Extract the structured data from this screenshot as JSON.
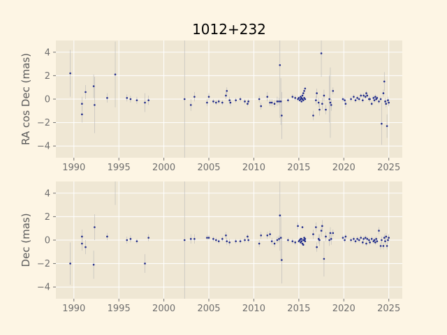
{
  "title": "1012+232",
  "colors": {
    "figure_bg": "#fdf5e4",
    "axes_bg": "#efe7d4",
    "grid": "#ffffff",
    "point": "#1f2a8a",
    "errorbar": "#b8b8b8"
  },
  "chart_data": [
    {
      "type": "scatter",
      "title": "1012+232",
      "xlabel": "",
      "ylabel": "RA cos Dec (mas)",
      "xlim": [
        1988,
        2026.5
      ],
      "ylim": [
        -5,
        5
      ],
      "xticks": [
        1990,
        1995,
        2000,
        2005,
        2010,
        2015,
        2020,
        2025
      ],
      "yticks": [
        -4,
        -2,
        0,
        2,
        4
      ],
      "grid": true,
      "points": [
        {
          "x": 1989.6,
          "y": 2.2,
          "err": 2.0
        },
        {
          "x": 1990.9,
          "y": -0.4,
          "err": 0.6
        },
        {
          "x": 1990.9,
          "y": -1.3,
          "err": 0.7
        },
        {
          "x": 1991.3,
          "y": 0.6,
          "err": 0.6
        },
        {
          "x": 1992.2,
          "y": 1.1,
          "err": 1.0
        },
        {
          "x": 1992.3,
          "y": -0.5,
          "err": 2.4
        },
        {
          "x": 1993.7,
          "y": 0.1,
          "err": 0.4
        },
        {
          "x": 1994.6,
          "y": 2.1,
          "err": 2.8
        },
        {
          "x": 1995.9,
          "y": 0.1,
          "err": 0.3
        },
        {
          "x": 1996.3,
          "y": 0.0,
          "err": 0.3
        },
        {
          "x": 1997.0,
          "y": -0.1,
          "err": 0.3
        },
        {
          "x": 1997.9,
          "y": -0.3,
          "err": 0.8
        },
        {
          "x": 1998.3,
          "y": -0.1,
          "err": 0.4
        },
        {
          "x": 2002.3,
          "y": 0.0,
          "err": 6.0
        },
        {
          "x": 2003.0,
          "y": -0.5,
          "err": 0.5
        },
        {
          "x": 2003.4,
          "y": 0.2,
          "err": 0.4
        },
        {
          "x": 2004.8,
          "y": -0.3,
          "err": 0.3
        },
        {
          "x": 2005.0,
          "y": 0.2,
          "err": 0.3
        },
        {
          "x": 2005.5,
          "y": -0.2,
          "err": 0.2
        },
        {
          "x": 2005.8,
          "y": -0.3,
          "err": 0.2
        },
        {
          "x": 2006.1,
          "y": -0.2,
          "err": 0.2
        },
        {
          "x": 2006.5,
          "y": -0.3,
          "err": 0.2
        },
        {
          "x": 2006.9,
          "y": 0.3,
          "err": 0.3
        },
        {
          "x": 2007.0,
          "y": 0.7,
          "err": 0.3
        },
        {
          "x": 2007.3,
          "y": -0.1,
          "err": 0.3
        },
        {
          "x": 2007.4,
          "y": -0.3,
          "err": 0.3
        },
        {
          "x": 2008.0,
          "y": -0.1,
          "err": 0.2
        },
        {
          "x": 2008.5,
          "y": 0.0,
          "err": 0.2
        },
        {
          "x": 2009.0,
          "y": -0.2,
          "err": 0.2
        },
        {
          "x": 2009.3,
          "y": -0.4,
          "err": 0.2
        },
        {
          "x": 2009.4,
          "y": -0.2,
          "err": 0.2
        },
        {
          "x": 2010.6,
          "y": 0.0,
          "err": 0.3
        },
        {
          "x": 2010.8,
          "y": -0.6,
          "err": 0.3
        },
        {
          "x": 2011.5,
          "y": 0.2,
          "err": 0.4
        },
        {
          "x": 2011.8,
          "y": -0.3,
          "err": 0.3
        },
        {
          "x": 2012.0,
          "y": -0.3,
          "err": 0.3
        },
        {
          "x": 2012.3,
          "y": -0.4,
          "err": 0.3
        },
        {
          "x": 2012.6,
          "y": -0.2,
          "err": 0.4
        },
        {
          "x": 2012.8,
          "y": -0.2,
          "err": 0.3
        },
        {
          "x": 2012.9,
          "y": 2.9,
          "err": 4.5
        },
        {
          "x": 2013.0,
          "y": -0.2,
          "err": 2.0
        },
        {
          "x": 2013.1,
          "y": -1.4,
          "err": 2.0
        },
        {
          "x": 2013.8,
          "y": -0.1,
          "err": 0.2
        },
        {
          "x": 2014.3,
          "y": 0.2,
          "err": 0.2
        },
        {
          "x": 2014.6,
          "y": 0.1,
          "err": 0.2
        },
        {
          "x": 2014.9,
          "y": 0.0,
          "err": 0.2
        },
        {
          "x": 2015.0,
          "y": 0.1,
          "err": 0.1
        },
        {
          "x": 2015.1,
          "y": -0.1,
          "err": 0.1
        },
        {
          "x": 2015.2,
          "y": 0.0,
          "err": 0.1
        },
        {
          "x": 2015.2,
          "y": 0.2,
          "err": 0.1
        },
        {
          "x": 2015.3,
          "y": -0.2,
          "err": 0.1
        },
        {
          "x": 2015.3,
          "y": 0.1,
          "err": 0.1
        },
        {
          "x": 2015.4,
          "y": 0.0,
          "err": 0.1
        },
        {
          "x": 2015.4,
          "y": 0.3,
          "err": 0.1
        },
        {
          "x": 2015.5,
          "y": -0.1,
          "err": 0.1
        },
        {
          "x": 2015.5,
          "y": 0.5,
          "err": 0.1
        },
        {
          "x": 2015.6,
          "y": 0.7,
          "err": 0.1
        },
        {
          "x": 2015.6,
          "y": 0.1,
          "err": 0.1
        },
        {
          "x": 2015.7,
          "y": 0.0,
          "err": 0.1
        },
        {
          "x": 2015.7,
          "y": 0.9,
          "err": 0.1
        },
        {
          "x": 2016.6,
          "y": -1.4,
          "err": 0.4
        },
        {
          "x": 2016.9,
          "y": -0.1,
          "err": 0.4
        },
        {
          "x": 2017.0,
          "y": 0.5,
          "err": 0.4
        },
        {
          "x": 2017.2,
          "y": -0.3,
          "err": 0.4
        },
        {
          "x": 2017.3,
          "y": -0.9,
          "err": 0.5
        },
        {
          "x": 2017.5,
          "y": 3.9,
          "err": 2.0
        },
        {
          "x": 2017.6,
          "y": -0.4,
          "err": 0.5
        },
        {
          "x": 2017.8,
          "y": 0.3,
          "err": 0.5
        },
        {
          "x": 2018.0,
          "y": -0.9,
          "err": 0.4
        },
        {
          "x": 2018.4,
          "y": 0.0,
          "err": 2.0
        },
        {
          "x": 2018.5,
          "y": -0.3,
          "err": 3.0
        },
        {
          "x": 2018.6,
          "y": -0.5,
          "err": 0.5
        },
        {
          "x": 2018.8,
          "y": 0.7,
          "err": 0.3
        },
        {
          "x": 2019.9,
          "y": 0.0,
          "err": 0.2
        },
        {
          "x": 2020.1,
          "y": -0.1,
          "err": 0.2
        },
        {
          "x": 2020.2,
          "y": -0.4,
          "err": 0.3
        },
        {
          "x": 2020.8,
          "y": 0.0,
          "err": 0.2
        },
        {
          "x": 2021.1,
          "y": 0.2,
          "err": 0.2
        },
        {
          "x": 2021.3,
          "y": -0.1,
          "err": 0.2
        },
        {
          "x": 2021.5,
          "y": 0.1,
          "err": 0.2
        },
        {
          "x": 2021.7,
          "y": 0.0,
          "err": 0.2
        },
        {
          "x": 2021.9,
          "y": 0.3,
          "err": 0.2
        },
        {
          "x": 2022.1,
          "y": -0.1,
          "err": 0.2
        },
        {
          "x": 2022.2,
          "y": 0.3,
          "err": 0.2
        },
        {
          "x": 2022.4,
          "y": 0.2,
          "err": 0.2
        },
        {
          "x": 2022.5,
          "y": 0.5,
          "err": 0.2
        },
        {
          "x": 2022.6,
          "y": 0.3,
          "err": 0.2
        },
        {
          "x": 2022.8,
          "y": 0.0,
          "err": 0.2
        },
        {
          "x": 2022.9,
          "y": 0.0,
          "err": 0.2
        },
        {
          "x": 2023.1,
          "y": -0.4,
          "err": 0.2
        },
        {
          "x": 2023.3,
          "y": 0.1,
          "err": 0.2
        },
        {
          "x": 2023.4,
          "y": -0.1,
          "err": 0.2
        },
        {
          "x": 2023.5,
          "y": 0.2,
          "err": 0.2
        },
        {
          "x": 2023.6,
          "y": 0.0,
          "err": 0.2
        },
        {
          "x": 2023.7,
          "y": 0.1,
          "err": 0.2
        },
        {
          "x": 2023.9,
          "y": -0.2,
          "err": 0.2
        },
        {
          "x": 2024.1,
          "y": 0.0,
          "err": 0.2
        },
        {
          "x": 2024.2,
          "y": -2.1,
          "err": 1.8
        },
        {
          "x": 2024.4,
          "y": 0.5,
          "err": 0.3
        },
        {
          "x": 2024.5,
          "y": 1.5,
          "err": 0.8
        },
        {
          "x": 2024.6,
          "y": -0.2,
          "err": 0.3
        },
        {
          "x": 2024.7,
          "y": -0.4,
          "err": 0.3
        },
        {
          "x": 2024.8,
          "y": -2.3,
          "err": 1.0
        },
        {
          "x": 2024.9,
          "y": -0.1,
          "err": 0.3
        },
        {
          "x": 2025.0,
          "y": -0.3,
          "err": 0.3
        }
      ]
    },
    {
      "type": "scatter",
      "title": "",
      "xlabel": "",
      "ylabel": "Dec (mas)",
      "xlim": [
        1988,
        2026.5
      ],
      "ylim": [
        -5,
        5
      ],
      "xticks": [
        1990,
        1995,
        2000,
        2005,
        2010,
        2015,
        2020,
        2025
      ],
      "yticks": [
        -4,
        -2,
        0,
        2,
        4
      ],
      "grid": true,
      "points": [
        {
          "x": 1989.6,
          "y": -2.0,
          "err": 1.8
        },
        {
          "x": 1990.9,
          "y": 0.3,
          "err": 0.6
        },
        {
          "x": 1990.9,
          "y": -0.3,
          "err": 0.6
        },
        {
          "x": 1991.3,
          "y": -0.6,
          "err": 0.6
        },
        {
          "x": 1992.2,
          "y": -2.1,
          "err": 1.2
        },
        {
          "x": 1992.3,
          "y": 1.1,
          "err": 1.1
        },
        {
          "x": 1993.7,
          "y": 0.3,
          "err": 0.3
        },
        {
          "x": 1994.6,
          "y": 5.5,
          "err": 2.5
        },
        {
          "x": 1995.9,
          "y": 0.0,
          "err": 0.3
        },
        {
          "x": 1996.3,
          "y": 0.1,
          "err": 0.3
        },
        {
          "x": 1997.0,
          "y": -0.1,
          "err": 0.2
        },
        {
          "x": 1997.9,
          "y": -2.0,
          "err": 0.8
        },
        {
          "x": 1998.3,
          "y": 0.2,
          "err": 0.3
        },
        {
          "x": 2002.3,
          "y": 0.0,
          "err": 6.0
        },
        {
          "x": 2003.0,
          "y": 0.1,
          "err": 0.4
        },
        {
          "x": 2003.4,
          "y": 0.1,
          "err": 0.4
        },
        {
          "x": 2004.8,
          "y": 0.2,
          "err": 0.2
        },
        {
          "x": 2005.0,
          "y": 0.2,
          "err": 0.2
        },
        {
          "x": 2005.5,
          "y": 0.1,
          "err": 0.2
        },
        {
          "x": 2005.8,
          "y": 0.0,
          "err": 0.2
        },
        {
          "x": 2006.1,
          "y": -0.1,
          "err": 0.2
        },
        {
          "x": 2006.5,
          "y": 0.1,
          "err": 0.2
        },
        {
          "x": 2006.9,
          "y": 0.4,
          "err": 0.3
        },
        {
          "x": 2007.0,
          "y": -0.1,
          "err": 0.3
        },
        {
          "x": 2007.3,
          "y": -0.2,
          "err": 0.3
        },
        {
          "x": 2008.0,
          "y": -0.1,
          "err": 0.2
        },
        {
          "x": 2008.5,
          "y": -0.1,
          "err": 0.2
        },
        {
          "x": 2009.0,
          "y": 0.0,
          "err": 0.2
        },
        {
          "x": 2009.3,
          "y": 0.3,
          "err": 0.2
        },
        {
          "x": 2009.4,
          "y": 0.0,
          "err": 0.2
        },
        {
          "x": 2010.6,
          "y": -0.3,
          "err": 0.3
        },
        {
          "x": 2010.8,
          "y": 0.4,
          "err": 0.3
        },
        {
          "x": 2011.5,
          "y": 0.4,
          "err": 0.3
        },
        {
          "x": 2011.8,
          "y": 0.5,
          "err": 0.3
        },
        {
          "x": 2012.0,
          "y": -0.1,
          "err": 0.3
        },
        {
          "x": 2012.3,
          "y": -0.3,
          "err": 0.3
        },
        {
          "x": 2012.6,
          "y": 0.0,
          "err": 0.3
        },
        {
          "x": 2012.8,
          "y": 0.1,
          "err": 0.3
        },
        {
          "x": 2012.9,
          "y": 2.1,
          "err": 3.0
        },
        {
          "x": 2013.0,
          "y": 0.2,
          "err": 2.0
        },
        {
          "x": 2013.1,
          "y": -1.7,
          "err": 2.0
        },
        {
          "x": 2013.8,
          "y": 0.0,
          "err": 0.2
        },
        {
          "x": 2014.3,
          "y": -0.1,
          "err": 0.2
        },
        {
          "x": 2014.6,
          "y": -0.2,
          "err": 0.2
        },
        {
          "x": 2014.9,
          "y": 1.2,
          "err": 0.3
        },
        {
          "x": 2015.0,
          "y": -0.1,
          "err": 0.1
        },
        {
          "x": 2015.1,
          "y": 0.0,
          "err": 0.1
        },
        {
          "x": 2015.2,
          "y": -0.2,
          "err": 0.1
        },
        {
          "x": 2015.2,
          "y": 0.1,
          "err": 0.1
        },
        {
          "x": 2015.3,
          "y": -0.1,
          "err": 0.1
        },
        {
          "x": 2015.3,
          "y": 0.1,
          "err": 0.1
        },
        {
          "x": 2015.4,
          "y": -0.3,
          "err": 0.1
        },
        {
          "x": 2015.4,
          "y": 1.1,
          "err": 0.1
        },
        {
          "x": 2015.5,
          "y": 0.0,
          "err": 0.1
        },
        {
          "x": 2015.5,
          "y": -0.4,
          "err": 0.1
        },
        {
          "x": 2015.6,
          "y": 0.2,
          "err": 0.1
        },
        {
          "x": 2015.6,
          "y": 0.0,
          "err": 0.1
        },
        {
          "x": 2015.7,
          "y": -0.1,
          "err": 0.1
        },
        {
          "x": 2015.7,
          "y": 0.1,
          "err": 0.1
        },
        {
          "x": 2016.6,
          "y": 0.5,
          "err": 0.4
        },
        {
          "x": 2016.9,
          "y": 1.1,
          "err": 0.4
        },
        {
          "x": 2017.0,
          "y": -0.6,
          "err": 0.4
        },
        {
          "x": 2017.2,
          "y": 0.1,
          "err": 0.4
        },
        {
          "x": 2017.3,
          "y": 0.0,
          "err": 0.5
        },
        {
          "x": 2017.5,
          "y": 0.8,
          "err": 0.5
        },
        {
          "x": 2017.6,
          "y": 1.2,
          "err": 0.5
        },
        {
          "x": 2017.8,
          "y": -1.6,
          "err": 1.5
        },
        {
          "x": 2018.0,
          "y": 0.3,
          "err": 0.4
        },
        {
          "x": 2018.4,
          "y": 0.0,
          "err": 0.5
        },
        {
          "x": 2018.5,
          "y": 0.6,
          "err": 0.5
        },
        {
          "x": 2018.6,
          "y": 0.1,
          "err": 0.5
        },
        {
          "x": 2018.8,
          "y": 0.6,
          "err": 0.3
        },
        {
          "x": 2019.9,
          "y": 0.2,
          "err": 0.2
        },
        {
          "x": 2020.1,
          "y": 0.0,
          "err": 0.2
        },
        {
          "x": 2020.2,
          "y": 0.3,
          "err": 0.2
        },
        {
          "x": 2020.8,
          "y": 0.0,
          "err": 0.2
        },
        {
          "x": 2021.1,
          "y": 0.1,
          "err": 0.2
        },
        {
          "x": 2021.3,
          "y": -0.1,
          "err": 0.2
        },
        {
          "x": 2021.5,
          "y": 0.1,
          "err": 0.2
        },
        {
          "x": 2021.7,
          "y": 0.0,
          "err": 0.2
        },
        {
          "x": 2021.9,
          "y": 0.2,
          "err": 0.2
        },
        {
          "x": 2022.1,
          "y": -0.2,
          "err": 0.2
        },
        {
          "x": 2022.2,
          "y": 0.1,
          "err": 0.2
        },
        {
          "x": 2022.4,
          "y": 0.2,
          "err": 0.2
        },
        {
          "x": 2022.5,
          "y": -0.3,
          "err": 0.2
        },
        {
          "x": 2022.6,
          "y": 0.1,
          "err": 0.2
        },
        {
          "x": 2022.8,
          "y": 0.0,
          "err": 0.2
        },
        {
          "x": 2022.9,
          "y": -0.2,
          "err": 0.2
        },
        {
          "x": 2023.1,
          "y": 0.1,
          "err": 0.2
        },
        {
          "x": 2023.3,
          "y": -0.1,
          "err": 0.2
        },
        {
          "x": 2023.4,
          "y": 0.0,
          "err": 0.2
        },
        {
          "x": 2023.5,
          "y": -0.2,
          "err": 0.2
        },
        {
          "x": 2023.6,
          "y": 0.1,
          "err": 0.2
        },
        {
          "x": 2023.7,
          "y": -0.1,
          "err": 0.2
        },
        {
          "x": 2023.9,
          "y": 0.8,
          "err": 0.3
        },
        {
          "x": 2024.1,
          "y": -0.5,
          "err": 0.3
        },
        {
          "x": 2024.2,
          "y": 0.0,
          "err": 0.3
        },
        {
          "x": 2024.4,
          "y": -0.5,
          "err": 0.3
        },
        {
          "x": 2024.5,
          "y": 0.2,
          "err": 0.3
        },
        {
          "x": 2024.6,
          "y": -0.1,
          "err": 0.3
        },
        {
          "x": 2024.7,
          "y": 0.3,
          "err": 0.3
        },
        {
          "x": 2024.8,
          "y": -0.5,
          "err": 0.3
        },
        {
          "x": 2024.9,
          "y": 0.0,
          "err": 0.3
        },
        {
          "x": 2025.0,
          "y": 0.2,
          "err": 0.3
        }
      ]
    }
  ]
}
